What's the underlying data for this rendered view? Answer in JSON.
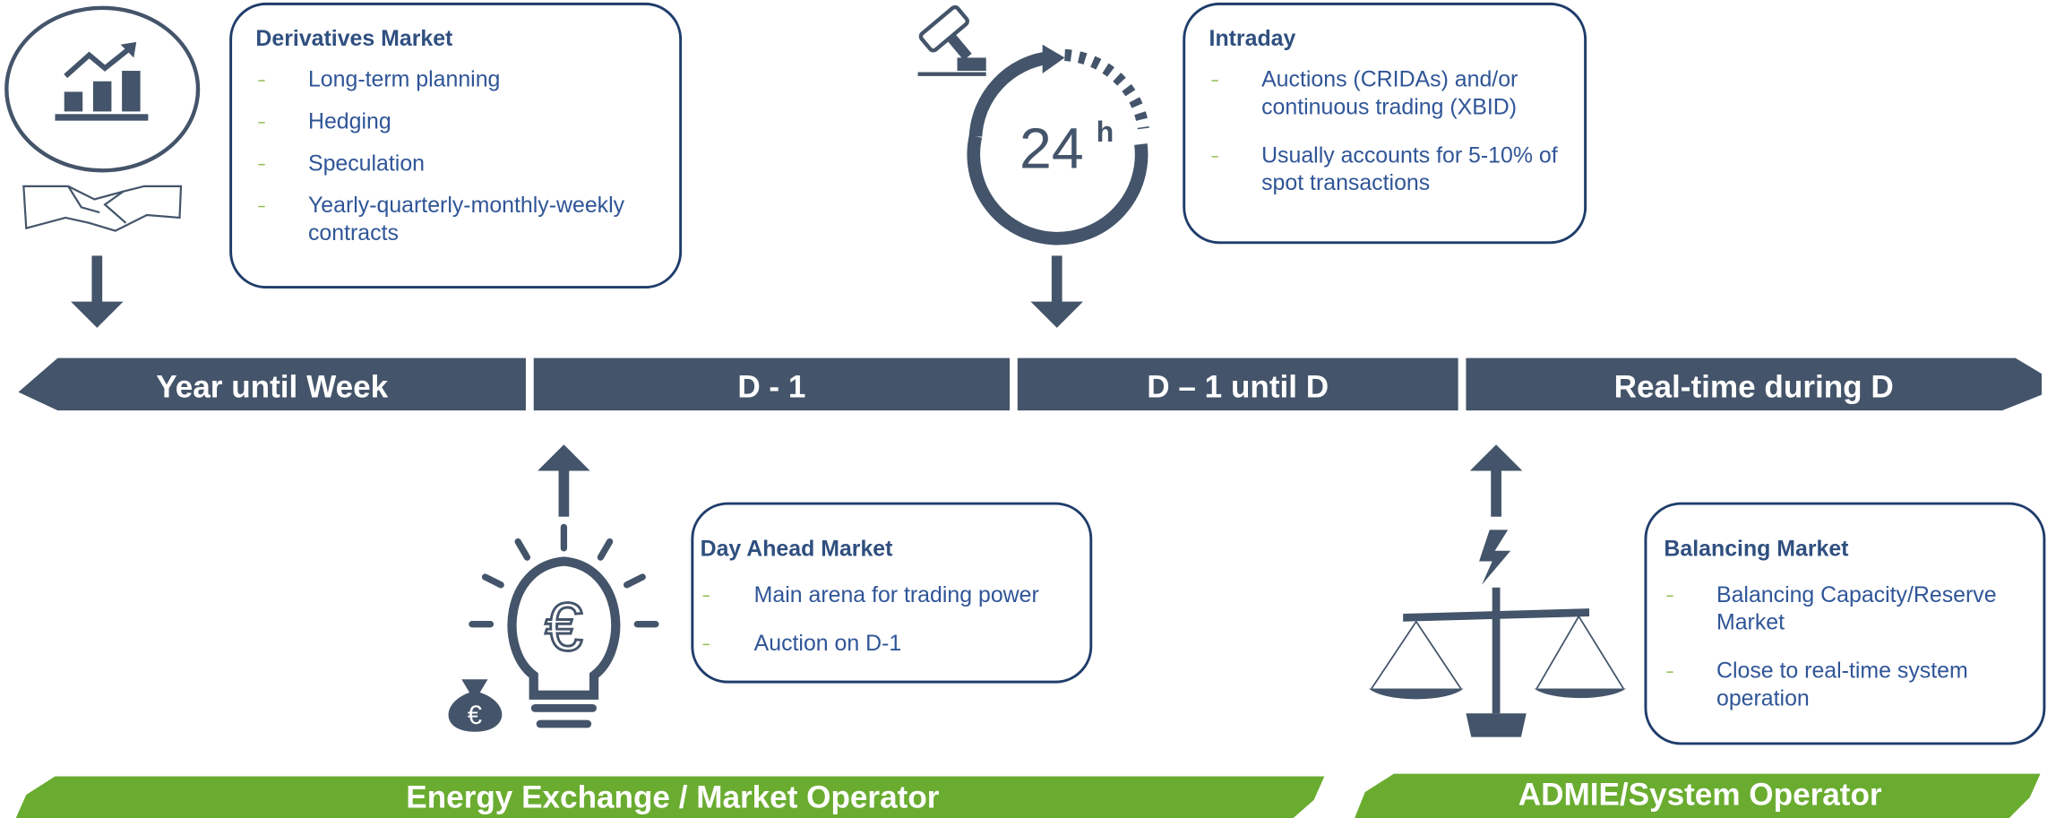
{
  "boxes": [
    {
      "title": "Derivatives Market",
      "items": [
        "Long-term planning",
        "Hedging",
        "Speculation",
        "Yearly-quarterly-monthly-weekly contracts"
      ]
    },
    {
      "title": "Intraday",
      "items": [
        "Auctions (CRIDAs) and/or continuous trading (XBID)",
        "Usually accounts for 5-10% of spot transactions"
      ]
    },
    {
      "title": "Day Ahead Market",
      "items": [
        "Main arena for trading power",
        "Auction on D-1"
      ]
    },
    {
      "title": "Balancing Market",
      "items": [
        "Balancing Capacity/Reserve Market",
        "Close to real-time system operation"
      ]
    }
  ],
  "timeline": [
    "Year until Week",
    "D - 1",
    "D – 1 until D",
    "Real-time during D"
  ],
  "operators": [
    "Energy Exchange / Market Operator",
    "ADMIE/System Operator"
  ],
  "clock_hours": "24",
  "clock_unit": "h",
  "currency": "€"
}
